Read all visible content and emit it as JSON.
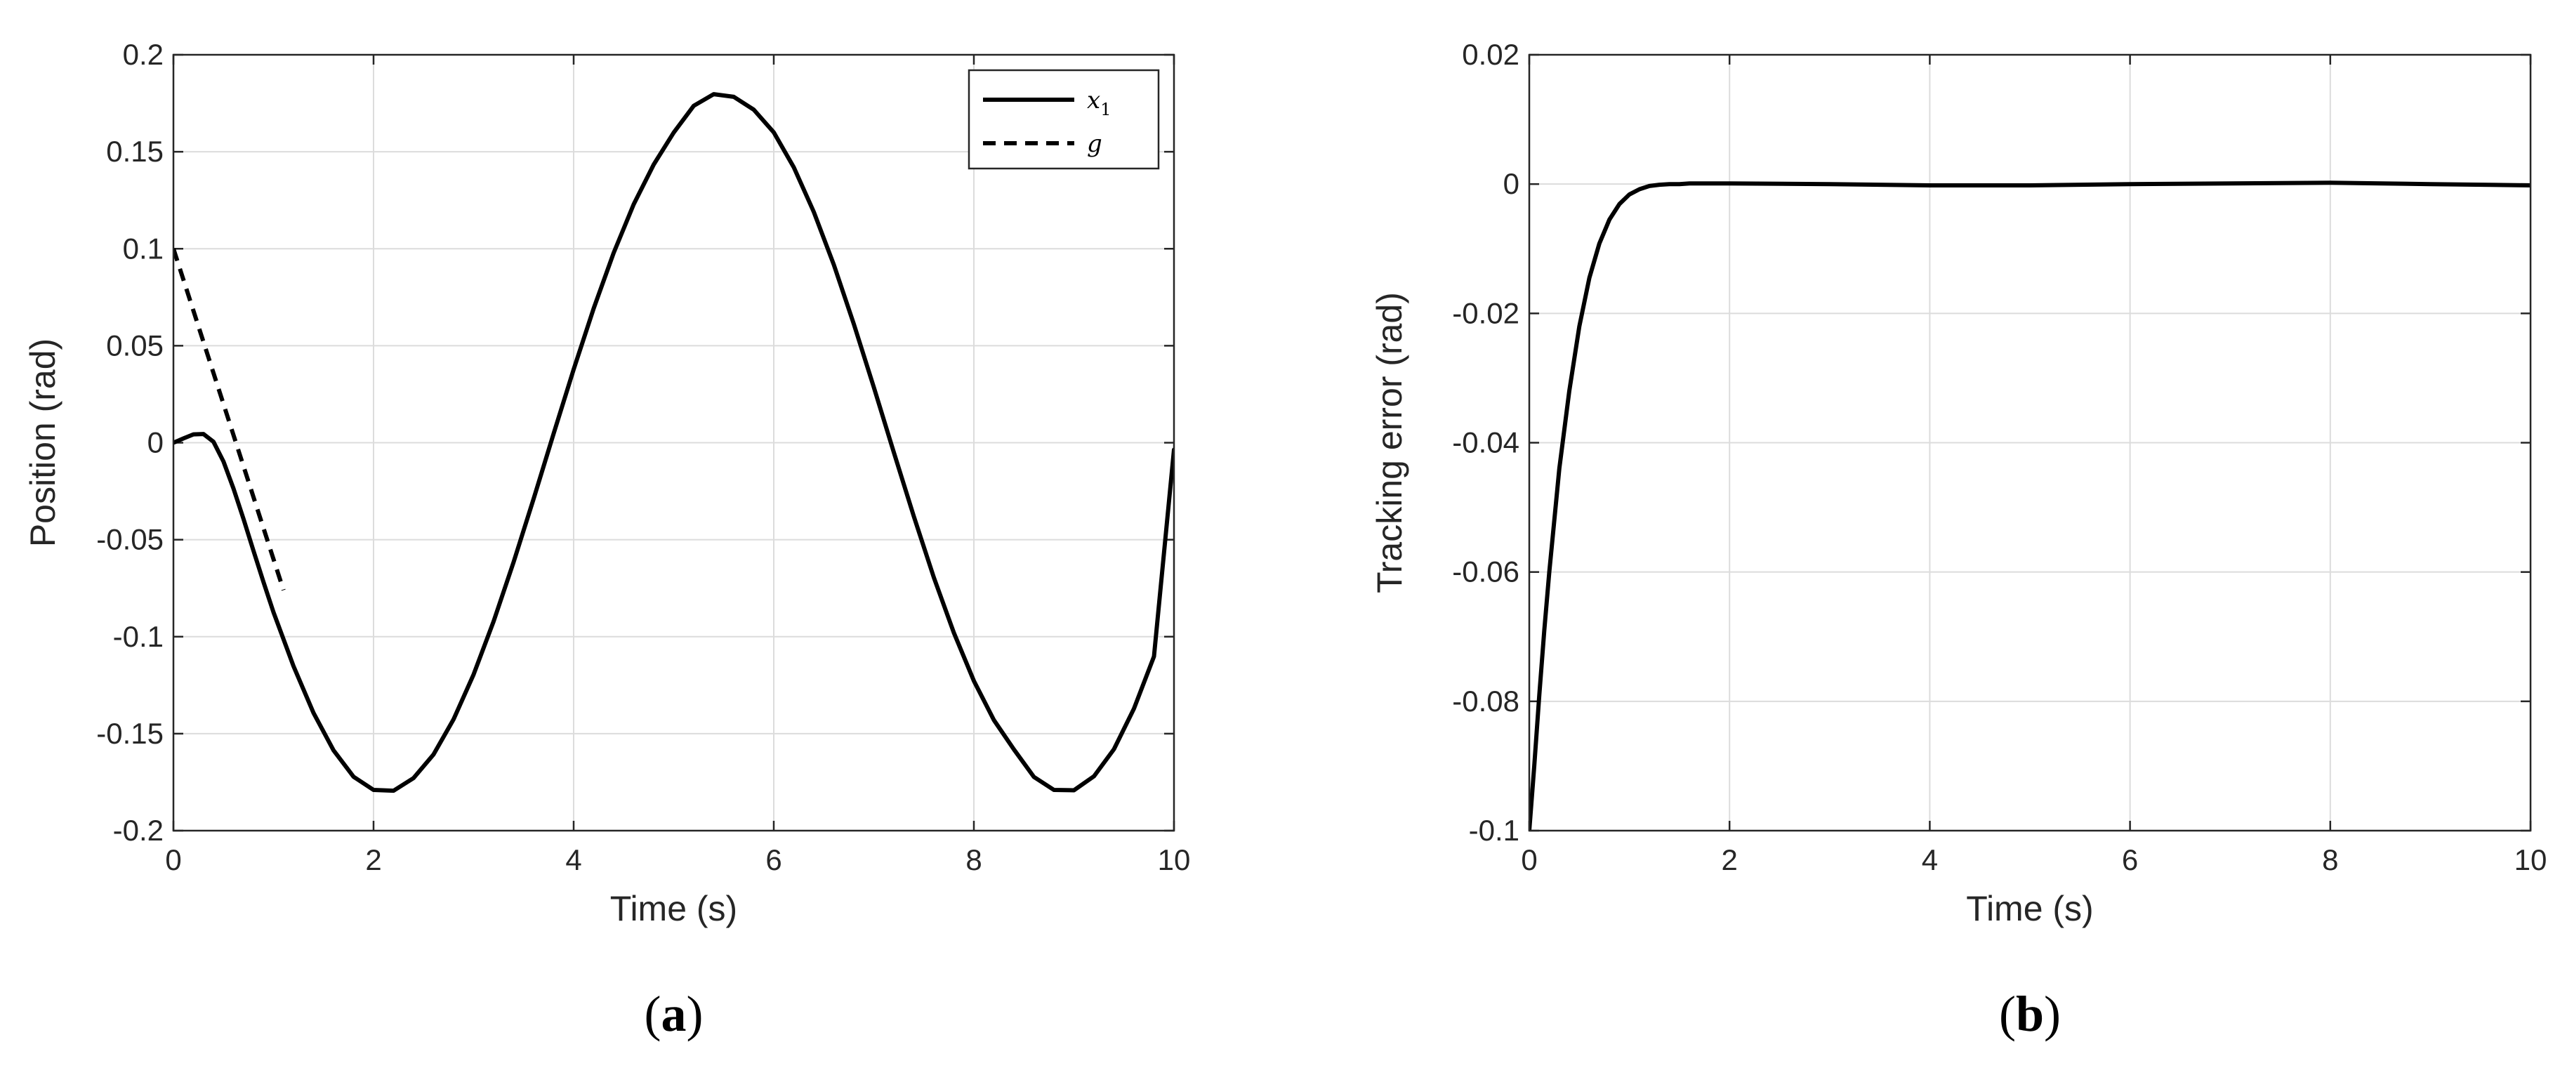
{
  "chart_data": [
    {
      "type": "line",
      "panel_label": "a",
      "xlabel": "Time (s)",
      "ylabel": "Position (rad)",
      "xlim": [
        0,
        10
      ],
      "ylim": [
        -0.2,
        0.2
      ],
      "xticks": [
        "0",
        "2",
        "4",
        "6",
        "8",
        "10"
      ],
      "yticks": [
        "-0.2",
        "-0.15",
        "-0.1",
        "-0.05",
        "0",
        "0.05",
        "0.1",
        "0.15",
        "0.2"
      ],
      "grid": true,
      "legend": "top-right",
      "series": [
        {
          "name": "x",
          "name_subscript": "1",
          "style": "solid",
          "x": [
            0,
            0.1,
            0.2,
            0.3,
            0.4,
            0.5,
            0.6,
            0.7,
            0.8,
            0.9,
            1.0,
            1.2,
            1.4,
            1.6,
            1.8,
            2.0,
            2.2,
            2.4,
            2.6,
            2.8,
            3.0,
            3.2,
            3.4,
            3.6,
            3.8,
            4.0,
            4.2,
            4.4,
            4.6,
            4.8,
            5.0,
            5.2,
            5.4,
            5.6,
            5.8,
            6.0,
            6.2,
            6.4,
            6.6,
            6.8,
            7.0,
            7.2,
            7.4,
            7.6,
            7.8,
            8.0,
            8.2,
            8.4,
            8.6,
            8.8,
            9.0,
            9.2,
            9.4,
            9.6,
            9.8,
            10.0
          ],
          "y": [
            0,
            0.0022,
            0.0043,
            0.0045,
            0.0005,
            -0.0097,
            -0.0236,
            -0.0393,
            -0.0557,
            -0.0719,
            -0.0874,
            -0.1152,
            -0.1393,
            -0.1586,
            -0.1722,
            -0.179,
            -0.1794,
            -0.1729,
            -0.1607,
            -0.1426,
            -0.1195,
            -0.0921,
            -0.0615,
            -0.0289,
            0.0047,
            0.0378,
            0.0692,
            0.0979,
            0.1229,
            0.1434,
            0.1599,
            0.1737,
            0.1797,
            0.1783,
            0.1717,
            0.16,
            0.142,
            0.119,
            0.0918,
            0.0612,
            0.0286,
            -0.005,
            -0.038,
            -0.0695,
            -0.098,
            -0.1228,
            -0.143,
            -0.1581,
            -0.1723,
            -0.179,
            -0.1792,
            -0.172,
            -0.158,
            -0.1371,
            -0.1102,
            -0.0036
          ]
        },
        {
          "name": "g",
          "style": "dashed",
          "x": [
            0,
            0.2,
            0.4,
            0.6,
            0.8,
            1.0,
            1.1
          ],
          "y": [
            0.1,
            0.068,
            0.036,
            0.004,
            -0.028,
            -0.06,
            -0.076
          ]
        }
      ]
    },
    {
      "type": "line",
      "panel_label": "b",
      "xlabel": "Time (s)",
      "ylabel": "Tracking error (rad)",
      "xlim": [
        0,
        10
      ],
      "ylim": [
        -0.1,
        0.02
      ],
      "xticks": [
        "0",
        "2",
        "4",
        "6",
        "8",
        "10"
      ],
      "yticks": [
        "-0.1",
        "-0.08",
        "-0.06",
        "-0.04",
        "-0.02",
        "0",
        "0.02"
      ],
      "grid": true,
      "series": [
        {
          "style": "solid",
          "x": [
            0,
            0.05,
            0.1,
            0.15,
            0.2,
            0.3,
            0.4,
            0.5,
            0.6,
            0.7,
            0.8,
            0.9,
            1.0,
            1.1,
            1.2,
            1.3,
            1.4,
            1.5,
            1.6,
            1.8,
            2.0,
            3.0,
            4.0,
            5.0,
            6.0,
            7.0,
            8.0,
            9.0,
            10.0
          ],
          "y": [
            -0.1,
            -0.09,
            -0.079,
            -0.069,
            -0.06,
            -0.044,
            -0.032,
            -0.022,
            -0.0145,
            -0.0092,
            -0.0055,
            -0.0031,
            -0.0016,
            -0.0008,
            -0.0003,
            -0.0001,
            0,
            0,
            0.0001,
            0.0001,
            0.0001,
            0,
            -0.0002,
            -0.0002,
            0,
            0.0001,
            0.0002,
            0,
            -0.0002
          ]
        }
      ]
    }
  ]
}
